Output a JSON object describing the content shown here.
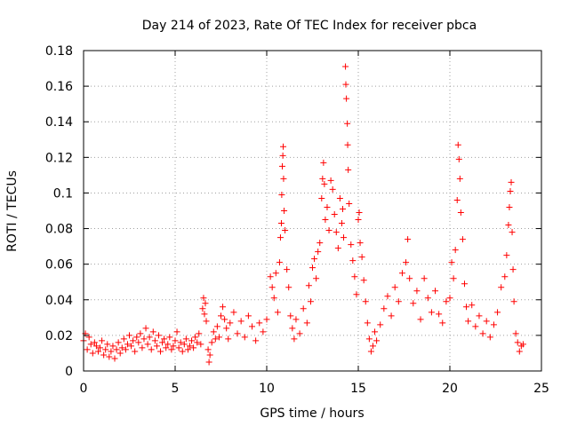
{
  "chart_data": {
    "type": "scatter",
    "title": "Day 214 of 2023, Rate Of TEC Index for receiver pbca",
    "xlabel": "GPS time / hours",
    "ylabel": "ROTI / TECUs",
    "xlim": [
      0,
      25
    ],
    "ylim": [
      0,
      0.18
    ],
    "x_ticks": [
      0,
      5,
      10,
      15,
      20,
      25
    ],
    "x_tick_labels": [
      "0",
      "5",
      "10",
      "15",
      "20",
      "25"
    ],
    "y_ticks": [
      0,
      0.02,
      0.04,
      0.06,
      0.08,
      0.1,
      0.12,
      0.14,
      0.16,
      0.18
    ],
    "y_tick_labels": [
      "0",
      "0.02",
      "0.04",
      "0.06",
      "0.08",
      "0.1",
      "0.12",
      "0.14",
      "0.16",
      "0.18"
    ],
    "grid": true,
    "legend": "none",
    "marker": "+",
    "color": "#ff0000",
    "points": [
      [
        0.0,
        0.017
      ],
      [
        0.1,
        0.021
      ],
      [
        0.2,
        0.012
      ],
      [
        0.3,
        0.019
      ],
      [
        0.4,
        0.015
      ],
      [
        0.5,
        0.01
      ],
      [
        0.6,
        0.016
      ],
      [
        0.7,
        0.014
      ],
      [
        0.8,
        0.011
      ],
      [
        0.9,
        0.013
      ],
      [
        1.0,
        0.017
      ],
      [
        1.1,
        0.009
      ],
      [
        1.2,
        0.012
      ],
      [
        1.3,
        0.015
      ],
      [
        1.4,
        0.008
      ],
      [
        1.5,
        0.011
      ],
      [
        1.6,
        0.014
      ],
      [
        1.7,
        0.007
      ],
      [
        1.8,
        0.012
      ],
      [
        1.9,
        0.016
      ],
      [
        2.0,
        0.01
      ],
      [
        2.1,
        0.013
      ],
      [
        2.2,
        0.018
      ],
      [
        2.3,
        0.012
      ],
      [
        2.4,
        0.015
      ],
      [
        2.5,
        0.02
      ],
      [
        2.6,
        0.014
      ],
      [
        2.7,
        0.017
      ],
      [
        2.8,
        0.011
      ],
      [
        2.9,
        0.019
      ],
      [
        3.0,
        0.016
      ],
      [
        3.1,
        0.021
      ],
      [
        3.2,
        0.013
      ],
      [
        3.3,
        0.018
      ],
      [
        3.4,
        0.024
      ],
      [
        3.5,
        0.015
      ],
      [
        3.6,
        0.019
      ],
      [
        3.7,
        0.012
      ],
      [
        3.8,
        0.022
      ],
      [
        3.9,
        0.017
      ],
      [
        4.0,
        0.014
      ],
      [
        4.1,
        0.02
      ],
      [
        4.2,
        0.011
      ],
      [
        4.3,
        0.016
      ],
      [
        4.4,
        0.018
      ],
      [
        4.5,
        0.013
      ],
      [
        4.6,
        0.015
      ],
      [
        4.7,
        0.019
      ],
      [
        4.8,
        0.012
      ],
      [
        4.9,
        0.014
      ],
      [
        5.0,
        0.017
      ],
      [
        5.1,
        0.022
      ],
      [
        5.2,
        0.013
      ],
      [
        5.3,
        0.016
      ],
      [
        5.4,
        0.011
      ],
      [
        5.5,
        0.015
      ],
      [
        5.6,
        0.018
      ],
      [
        5.7,
        0.012
      ],
      [
        5.8,
        0.014
      ],
      [
        5.9,
        0.017
      ],
      [
        6.0,
        0.013
      ],
      [
        6.1,
        0.019
      ],
      [
        6.2,
        0.016
      ],
      [
        6.3,
        0.021
      ],
      [
        6.4,
        0.015
      ],
      [
        6.5,
        0.035
      ],
      [
        6.55,
        0.041
      ],
      [
        6.6,
        0.032
      ],
      [
        6.65,
        0.038
      ],
      [
        6.7,
        0.028
      ],
      [
        6.8,
        0.012
      ],
      [
        6.85,
        0.005
      ],
      [
        6.9,
        0.009
      ],
      [
        7.0,
        0.016
      ],
      [
        7.1,
        0.022
      ],
      [
        7.2,
        0.018
      ],
      [
        7.3,
        0.025
      ],
      [
        7.4,
        0.019
      ],
      [
        7.5,
        0.031
      ],
      [
        7.6,
        0.036
      ],
      [
        7.7,
        0.029
      ],
      [
        7.8,
        0.024
      ],
      [
        7.9,
        0.018
      ],
      [
        8.0,
        0.027
      ],
      [
        8.2,
        0.033
      ],
      [
        8.4,
        0.021
      ],
      [
        8.6,
        0.028
      ],
      [
        8.8,
        0.019
      ],
      [
        9.0,
        0.031
      ],
      [
        9.2,
        0.025
      ],
      [
        9.4,
        0.017
      ],
      [
        9.6,
        0.027
      ],
      [
        9.8,
        0.022
      ],
      [
        10.0,
        0.029
      ],
      [
        10.2,
        0.053
      ],
      [
        10.3,
        0.047
      ],
      [
        10.4,
        0.041
      ],
      [
        10.5,
        0.055
      ],
      [
        10.6,
        0.033
      ],
      [
        10.7,
        0.061
      ],
      [
        10.75,
        0.075
      ],
      [
        10.8,
        0.083
      ],
      [
        10.82,
        0.099
      ],
      [
        10.85,
        0.115
      ],
      [
        10.88,
        0.121
      ],
      [
        10.9,
        0.126
      ],
      [
        10.92,
        0.108
      ],
      [
        10.95,
        0.09
      ],
      [
        11.0,
        0.079
      ],
      [
        11.1,
        0.057
      ],
      [
        11.2,
        0.047
      ],
      [
        11.3,
        0.031
      ],
      [
        11.4,
        0.024
      ],
      [
        11.5,
        0.018
      ],
      [
        11.6,
        0.029
      ],
      [
        11.8,
        0.021
      ],
      [
        12.0,
        0.035
      ],
      [
        12.2,
        0.027
      ],
      [
        12.3,
        0.048
      ],
      [
        12.4,
        0.039
      ],
      [
        12.5,
        0.058
      ],
      [
        12.6,
        0.063
      ],
      [
        12.7,
        0.052
      ],
      [
        12.8,
        0.067
      ],
      [
        12.9,
        0.072
      ],
      [
        13.0,
        0.097
      ],
      [
        13.05,
        0.108
      ],
      [
        13.1,
        0.117
      ],
      [
        13.15,
        0.105
      ],
      [
        13.2,
        0.085
      ],
      [
        13.3,
        0.092
      ],
      [
        13.4,
        0.079
      ],
      [
        13.5,
        0.107
      ],
      [
        13.6,
        0.102
      ],
      [
        13.7,
        0.088
      ],
      [
        13.8,
        0.078
      ],
      [
        13.9,
        0.069
      ],
      [
        14.0,
        0.097
      ],
      [
        14.1,
        0.083
      ],
      [
        14.15,
        0.091
      ],
      [
        14.2,
        0.075
      ],
      [
        14.3,
        0.171
      ],
      [
        14.32,
        0.161
      ],
      [
        14.35,
        0.153
      ],
      [
        14.4,
        0.139
      ],
      [
        14.42,
        0.127
      ],
      [
        14.45,
        0.113
      ],
      [
        14.5,
        0.094
      ],
      [
        14.6,
        0.071
      ],
      [
        14.7,
        0.062
      ],
      [
        14.8,
        0.053
      ],
      [
        14.9,
        0.043
      ],
      [
        15.0,
        0.085
      ],
      [
        15.05,
        0.089
      ],
      [
        15.1,
        0.072
      ],
      [
        15.2,
        0.064
      ],
      [
        15.3,
        0.051
      ],
      [
        15.4,
        0.039
      ],
      [
        15.5,
        0.027
      ],
      [
        15.6,
        0.018
      ],
      [
        15.7,
        0.011
      ],
      [
        15.8,
        0.014
      ],
      [
        15.9,
        0.022
      ],
      [
        16.0,
        0.017
      ],
      [
        16.2,
        0.026
      ],
      [
        16.4,
        0.035
      ],
      [
        16.6,
        0.042
      ],
      [
        16.8,
        0.031
      ],
      [
        17.0,
        0.047
      ],
      [
        17.2,
        0.039
      ],
      [
        17.4,
        0.055
      ],
      [
        17.6,
        0.061
      ],
      [
        17.7,
        0.074
      ],
      [
        17.8,
        0.052
      ],
      [
        18.0,
        0.038
      ],
      [
        18.2,
        0.045
      ],
      [
        18.4,
        0.029
      ],
      [
        18.6,
        0.052
      ],
      [
        18.8,
        0.041
      ],
      [
        19.0,
        0.033
      ],
      [
        19.2,
        0.045
      ],
      [
        19.4,
        0.032
      ],
      [
        19.6,
        0.027
      ],
      [
        19.8,
        0.039
      ],
      [
        20.0,
        0.041
      ],
      [
        20.1,
        0.061
      ],
      [
        20.2,
        0.052
      ],
      [
        20.3,
        0.068
      ],
      [
        20.4,
        0.096
      ],
      [
        20.45,
        0.127
      ],
      [
        20.5,
        0.119
      ],
      [
        20.55,
        0.108
      ],
      [
        20.6,
        0.089
      ],
      [
        20.7,
        0.074
      ],
      [
        20.8,
        0.049
      ],
      [
        20.9,
        0.036
      ],
      [
        21.0,
        0.028
      ],
      [
        21.2,
        0.037
      ],
      [
        21.4,
        0.025
      ],
      [
        21.6,
        0.031
      ],
      [
        21.8,
        0.021
      ],
      [
        22.0,
        0.028
      ],
      [
        22.2,
        0.019
      ],
      [
        22.4,
        0.026
      ],
      [
        22.6,
        0.033
      ],
      [
        22.8,
        0.047
      ],
      [
        23.0,
        0.053
      ],
      [
        23.1,
        0.065
      ],
      [
        23.2,
        0.082
      ],
      [
        23.25,
        0.092
      ],
      [
        23.3,
        0.101
      ],
      [
        23.35,
        0.106
      ],
      [
        23.4,
        0.078
      ],
      [
        23.45,
        0.057
      ],
      [
        23.5,
        0.039
      ],
      [
        23.6,
        0.021
      ],
      [
        23.7,
        0.016
      ],
      [
        23.8,
        0.011
      ],
      [
        23.9,
        0.014
      ],
      [
        24.0,
        0.015
      ]
    ]
  }
}
